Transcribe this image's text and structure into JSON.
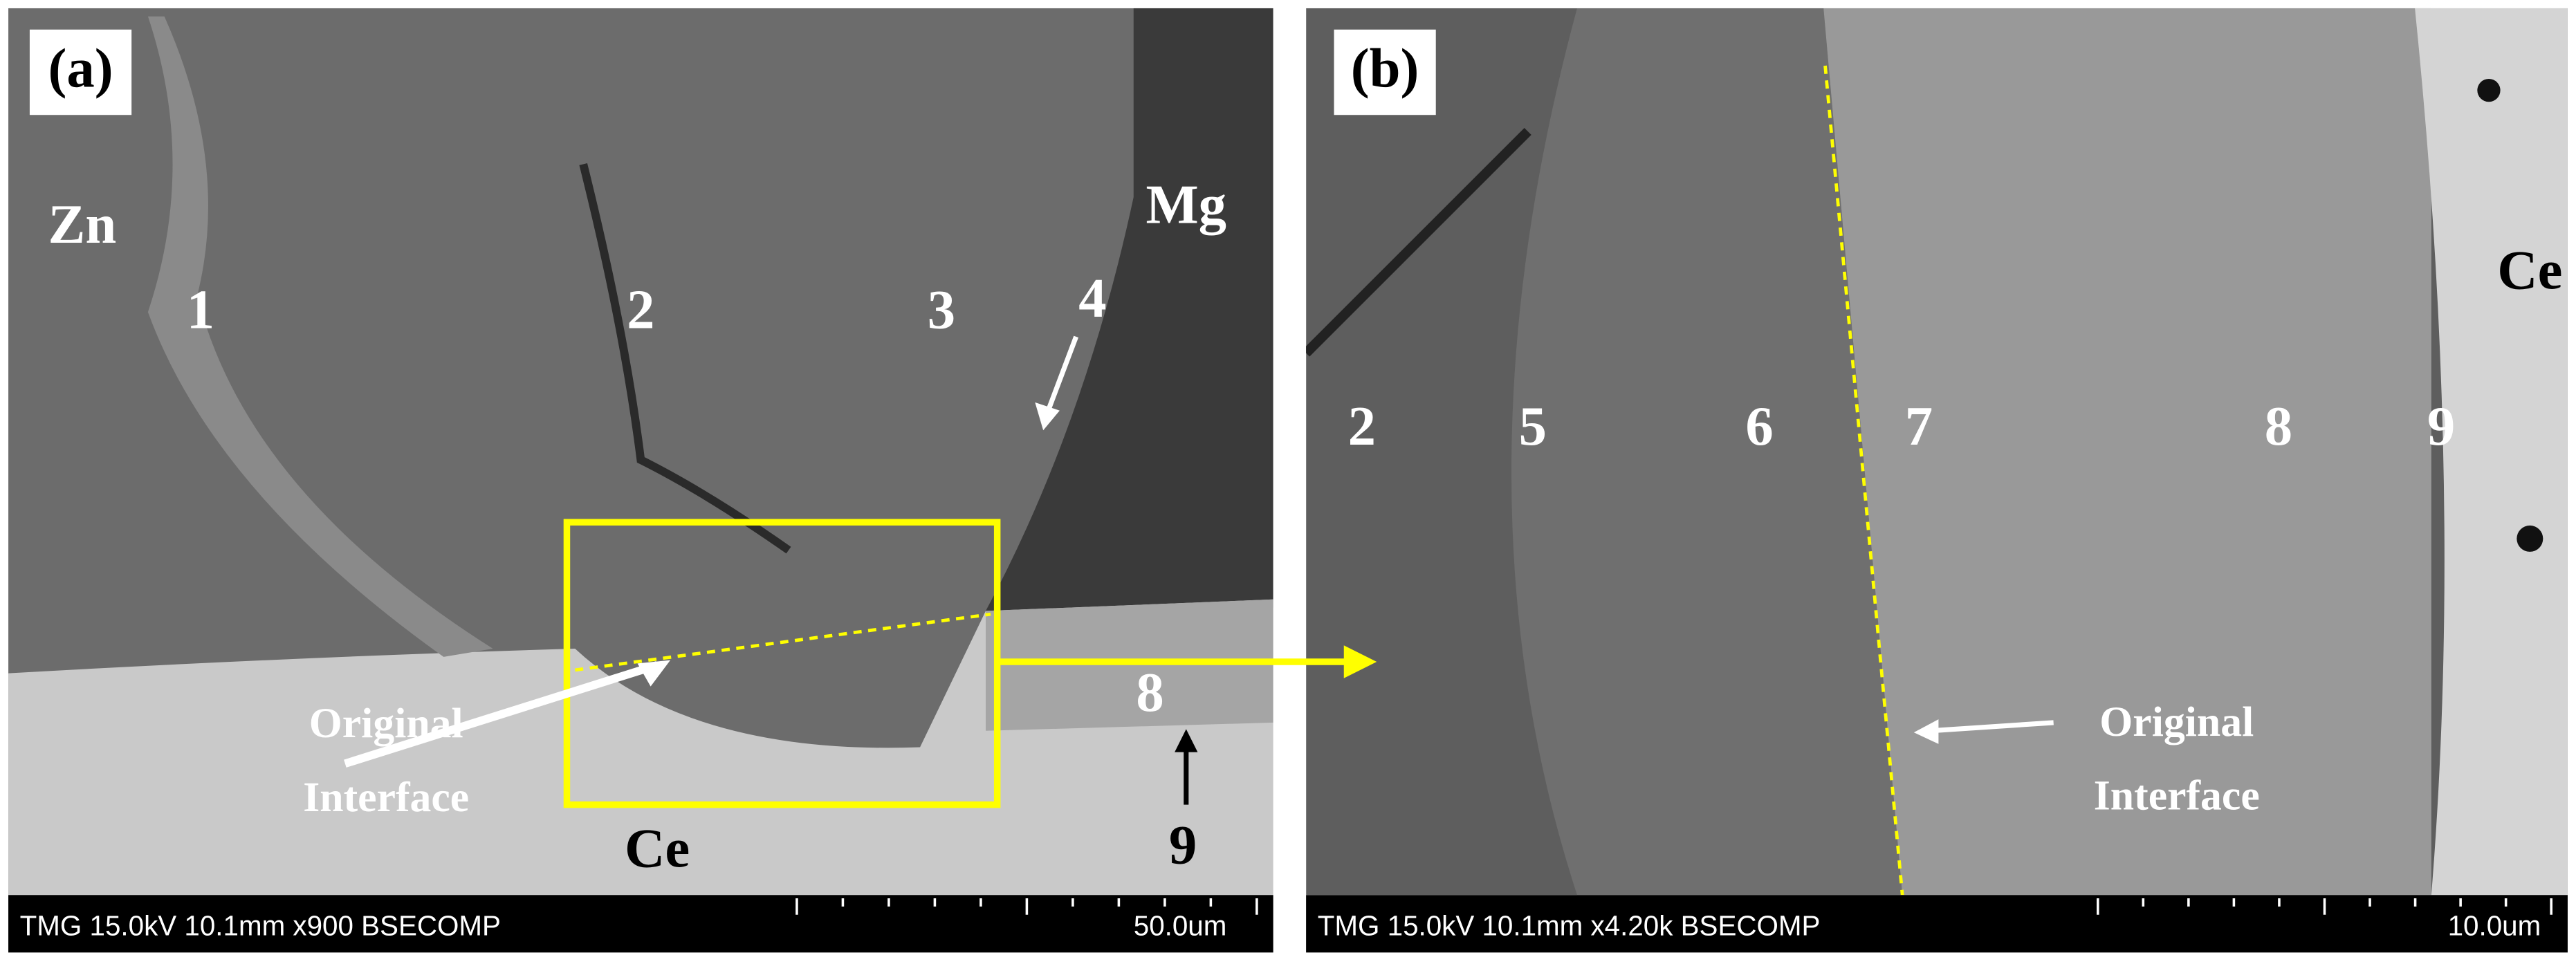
{
  "panels": [
    {
      "label": "(a)",
      "phase_labels": [
        "Zn",
        "Mg",
        "Ce",
        "1",
        "2",
        "3",
        "4",
        "8",
        "9"
      ],
      "annotation": [
        "Original",
        "Interface"
      ],
      "footer": "TMG 15.0kV 10.1mm x900 BSECOMP",
      "scale_bar": "50.0um"
    },
    {
      "label": "(b)",
      "phase_labels": [
        "2",
        "5",
        "6",
        "7",
        "8",
        "9",
        "Ce"
      ],
      "annotation": [
        "Original",
        "Interface"
      ],
      "footer": "TMG 15.0kV 10.1mm x4.20k BSECOMP",
      "scale_bar": "10.0um"
    }
  ]
}
